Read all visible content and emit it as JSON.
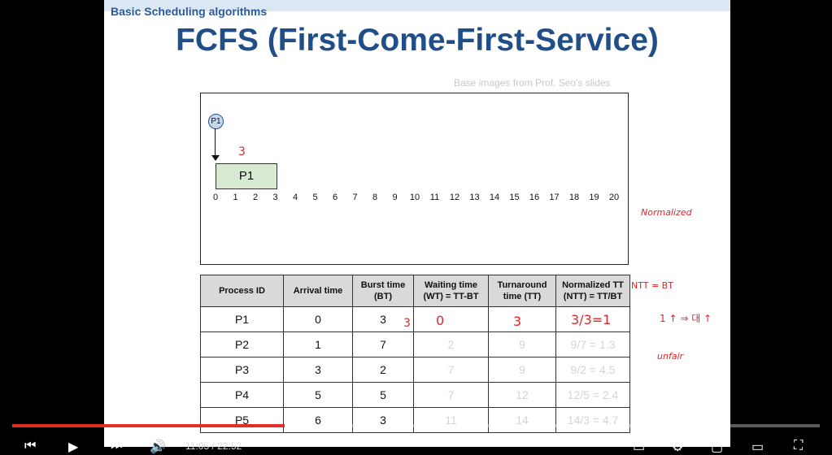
{
  "slide": {
    "section_title": "Basic Scheduling algorithms",
    "title": "FCFS (First-Come-First-Service)",
    "credit": "Base images from Prof. Seo's slides"
  },
  "gantt": {
    "circle_label": "P1",
    "block_label": "P1",
    "block_annotation": "3",
    "ticks": [
      "0",
      "1",
      "2",
      "3",
      "4",
      "5",
      "6",
      "7",
      "8",
      "9",
      "10",
      "11",
      "12",
      "13",
      "14",
      "15",
      "16",
      "17",
      "18",
      "19",
      "20"
    ]
  },
  "table": {
    "headers": [
      "Process ID",
      "Arrival time",
      "Burst time (BT)",
      "Waiting time (WT) = TT-BT",
      "Turnaround time (TT)",
      "Normalized TT (NTT) = TT/BT"
    ],
    "rows": [
      {
        "id": "P1",
        "arrival": "0",
        "burst": "3",
        "wt": "",
        "tt": "",
        "ntt": ""
      },
      {
        "id": "P2",
        "arrival": "1",
        "burst": "7",
        "wt": "2",
        "tt": "9",
        "ntt": "9/7 = 1.3"
      },
      {
        "id": "P3",
        "arrival": "3",
        "burst": "2",
        "wt": "7",
        "tt": "9",
        "ntt": "9/2 = 4.5"
      },
      {
        "id": "P4",
        "arrival": "5",
        "burst": "5",
        "wt": "7",
        "tt": "12",
        "ntt": "12/5 = 2.4"
      },
      {
        "id": "P5",
        "arrival": "6",
        "burst": "3",
        "wt": "11",
        "tt": "14",
        "ntt": "14/3 = 4.7"
      }
    ]
  },
  "annotations": {
    "normalized": "Normalized",
    "p1_wt": "0",
    "p1_tt": "3",
    "p1_ntt": "3/3=1",
    "ntt_bt": "NTT = BT",
    "unfair": "unfair",
    "up_arrow": "1 ↑ ⇒ 대 ↑",
    "burst_3": "3"
  },
  "player": {
    "time_current": "11:05",
    "time_total": "22:52",
    "progress": 0.337
  }
}
